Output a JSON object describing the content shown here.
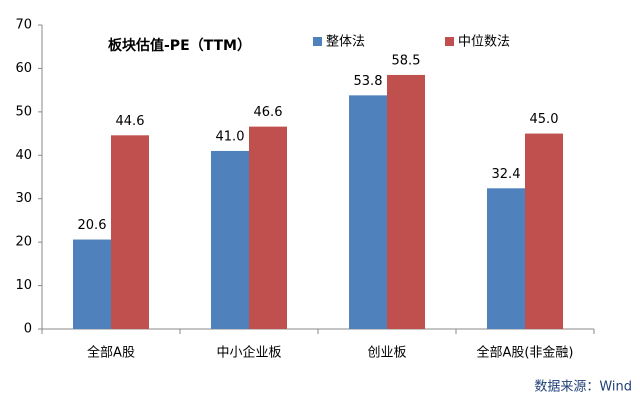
{
  "chart_data": {
    "type": "bar",
    "title": "板块估值-PE（TTM）",
    "categories": [
      "全部A股",
      "中小企业板",
      "创业板",
      "全部A股(非金融)"
    ],
    "series": [
      {
        "name": "整体法",
        "color": "#4f81bd",
        "values": [
          20.6,
          41.0,
          53.8,
          32.4
        ],
        "value_labels": [
          "20.6",
          "41.0",
          "53.8",
          "32.4"
        ]
      },
      {
        "name": "中位数法",
        "color": "#c0504d",
        "values": [
          44.6,
          46.6,
          58.5,
          45.0
        ],
        "value_labels": [
          "44.6",
          "46.6",
          "58.5",
          "45.0"
        ]
      }
    ],
    "ylim": [
      0,
      70
    ],
    "yticks": [
      0,
      10,
      20,
      30,
      40,
      50,
      60,
      70
    ],
    "grid": false,
    "source": "数据来源：Wind"
  }
}
